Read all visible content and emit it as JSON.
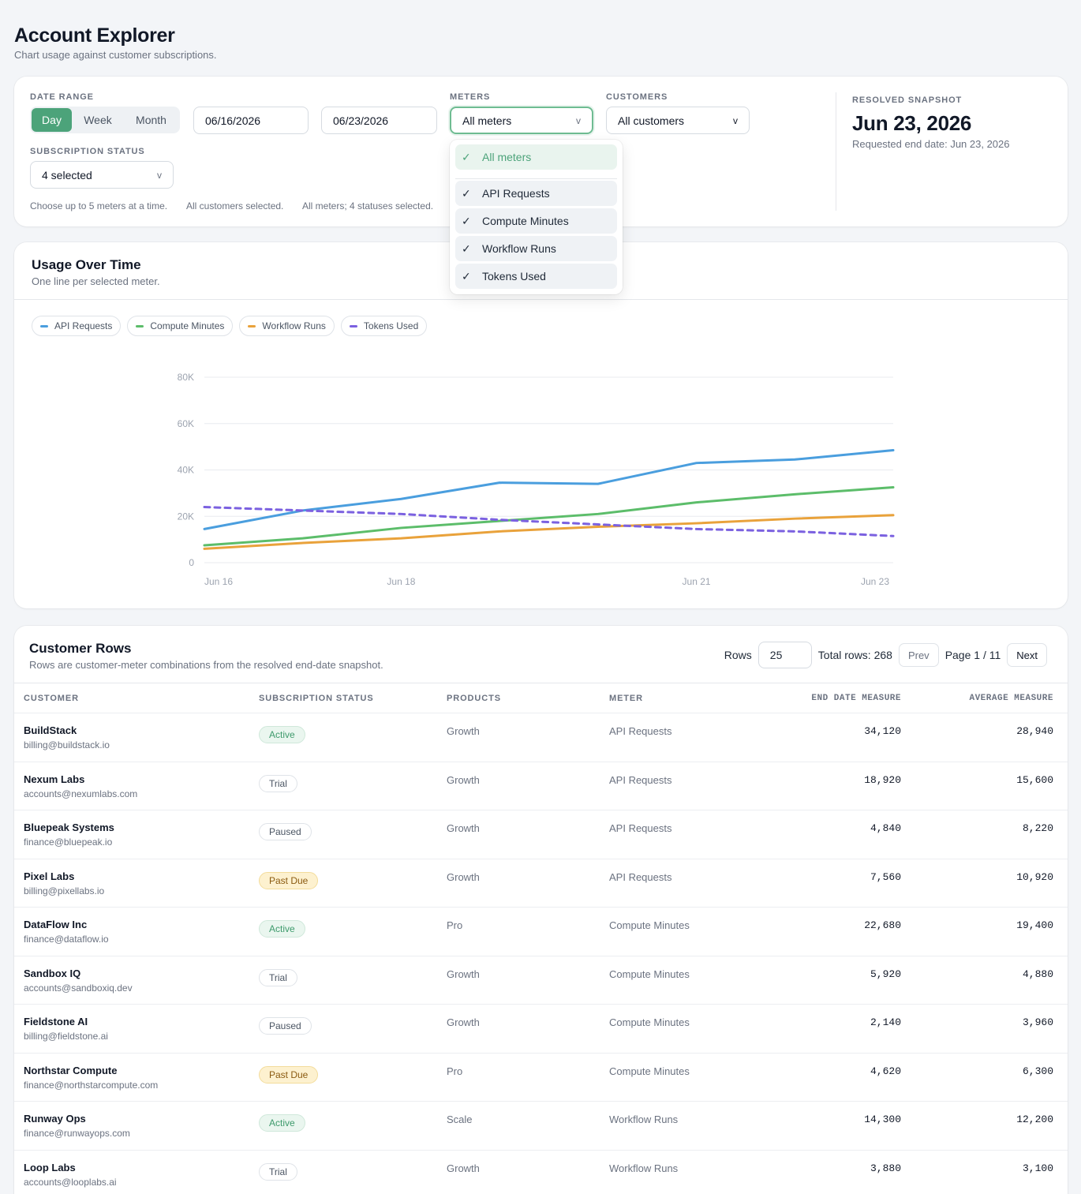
{
  "header": {
    "title": "Account Explorer",
    "subtitle": "Chart usage against customer subscriptions."
  },
  "filters": {
    "date_range_label": "DATE RANGE",
    "granularity": [
      "Day",
      "Week",
      "Month"
    ],
    "granularity_selected": "Day",
    "start_date": "06/16/2026",
    "end_date": "06/23/2026",
    "meters_label": "METERS",
    "meters_value": "All meters",
    "customers_label": "CUSTOMERS",
    "customers_value": "All customers",
    "status_label": "SUBSCRIPTION STATUS",
    "status_value": "4 selected",
    "chevron": "v",
    "hints": [
      "Choose up to 5 meters at a time.",
      "All customers selected.",
      "All meters; 4 statuses selected."
    ],
    "snapshot_label": "RESOLVED SNAPSHOT",
    "snapshot_date": "Jun 23, 2026",
    "requested_end": "Requested end date: Jun 23, 2026"
  },
  "meters_dropdown": {
    "check_glyph": "✓",
    "all_option": "All meters",
    "options": [
      "API Requests",
      "Compute Minutes",
      "Workflow Runs",
      "Tokens Used"
    ]
  },
  "chart_card": {
    "title": "Usage Over Time",
    "subtitle": "One line per selected meter."
  },
  "chart_data": {
    "type": "line",
    "x": [
      "Jun 16",
      "Jun 17",
      "Jun 18",
      "Jun 19",
      "Jun 20",
      "Jun 21",
      "Jun 22",
      "Jun 23"
    ],
    "x_tick_labels": [
      "Jun 16",
      "Jun 18",
      "Jun 21",
      "Jun 23"
    ],
    "y_ticks": [
      0,
      20000,
      40000,
      60000,
      80000
    ],
    "y_tick_labels": [
      "0",
      "20K",
      "40K",
      "60K",
      "80K"
    ],
    "ylim": [
      0,
      80000
    ],
    "grid": true,
    "legend_position": "top-left",
    "series": [
      {
        "name": "API Requests",
        "color": "#4a9ede",
        "dashed": false,
        "values": [
          14500,
          22500,
          27500,
          34500,
          34000,
          43000,
          44500,
          48500
        ]
      },
      {
        "name": "Compute Minutes",
        "color": "#5cbd6a",
        "dashed": false,
        "values": [
          7500,
          10500,
          15000,
          18000,
          21000,
          26000,
          29500,
          32500
        ]
      },
      {
        "name": "Workflow Runs",
        "color": "#e9a23b",
        "dashed": false,
        "values": [
          6000,
          8500,
          10500,
          13500,
          15500,
          17000,
          19000,
          20500
        ]
      },
      {
        "name": "Tokens Used",
        "color": "#7b61e0",
        "dashed": true,
        "values": [
          24000,
          22500,
          21000,
          18500,
          16500,
          14500,
          13500,
          11500
        ]
      }
    ]
  },
  "table": {
    "title": "Customer Rows",
    "subtitle": "Rows are customer-meter combinations from the resolved end-date snapshot.",
    "rows_label": "Rows",
    "rows_value": "25",
    "total_rows": "Total rows: 268",
    "prev": "Prev",
    "page": "Page 1 / 11",
    "next": "Next",
    "columns": [
      "CUSTOMER",
      "SUBSCRIPTION STATUS",
      "PRODUCTS",
      "METER",
      "END DATE MEASURE",
      "AVERAGE MEASURE"
    ],
    "rows": [
      {
        "name": "BuildStack",
        "email": "billing@buildstack.io",
        "status": "Active",
        "status_kind": "active",
        "product": "Growth",
        "meter": "API Requests",
        "end": "34,120",
        "avg": "28,940"
      },
      {
        "name": "Nexum Labs",
        "email": "accounts@nexumlabs.com",
        "status": "Trial",
        "status_kind": "neutral",
        "product": "Growth",
        "meter": "API Requests",
        "end": "18,920",
        "avg": "15,600"
      },
      {
        "name": "Bluepeak Systems",
        "email": "finance@bluepeak.io",
        "status": "Paused",
        "status_kind": "neutral",
        "product": "Growth",
        "meter": "API Requests",
        "end": "4,840",
        "avg": "8,220"
      },
      {
        "name": "Pixel Labs",
        "email": "billing@pixellabs.io",
        "status": "Past Due",
        "status_kind": "pastdue",
        "product": "Growth",
        "meter": "API Requests",
        "end": "7,560",
        "avg": "10,920"
      },
      {
        "name": "DataFlow Inc",
        "email": "finance@dataflow.io",
        "status": "Active",
        "status_kind": "active",
        "product": "Pro",
        "meter": "Compute Minutes",
        "end": "22,680",
        "avg": "19,400"
      },
      {
        "name": "Sandbox IQ",
        "email": "accounts@sandboxiq.dev",
        "status": "Trial",
        "status_kind": "neutral",
        "product": "Growth",
        "meter": "Compute Minutes",
        "end": "5,920",
        "avg": "4,880"
      },
      {
        "name": "Fieldstone AI",
        "email": "billing@fieldstone.ai",
        "status": "Paused",
        "status_kind": "neutral",
        "product": "Growth",
        "meter": "Compute Minutes",
        "end": "2,140",
        "avg": "3,960"
      },
      {
        "name": "Northstar Compute",
        "email": "finance@northstarcompute.com",
        "status": "Past Due",
        "status_kind": "pastdue",
        "product": "Pro",
        "meter": "Compute Minutes",
        "end": "4,620",
        "avg": "6,300"
      },
      {
        "name": "Runway Ops",
        "email": "finance@runwayops.com",
        "status": "Active",
        "status_kind": "active",
        "product": "Scale",
        "meter": "Workflow Runs",
        "end": "14,300",
        "avg": "12,200"
      },
      {
        "name": "Loop Labs",
        "email": "accounts@looplabs.ai",
        "status": "Trial",
        "status_kind": "neutral",
        "product": "Growth",
        "meter": "Workflow Runs",
        "end": "3,880",
        "avg": "3,100"
      }
    ]
  }
}
